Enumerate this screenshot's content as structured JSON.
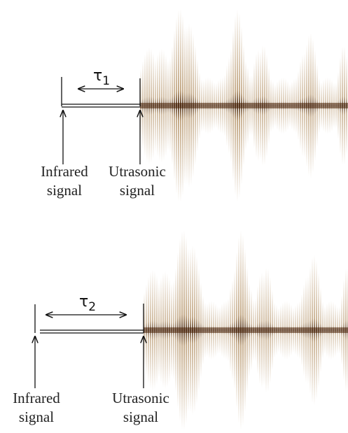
{
  "panels": [
    {
      "tau": {
        "symbol": "τ",
        "subscript": "1"
      },
      "infrared": [
        "Infrared",
        "signal"
      ],
      "ultrasonic": [
        "Utrasonic",
        "signal"
      ]
    },
    {
      "tau": {
        "symbol": "τ",
        "subscript": "2"
      },
      "infrared": [
        "Infrared",
        "signal"
      ],
      "ultrasonic": [
        "Utrasonic",
        "signal"
      ]
    }
  ]
}
